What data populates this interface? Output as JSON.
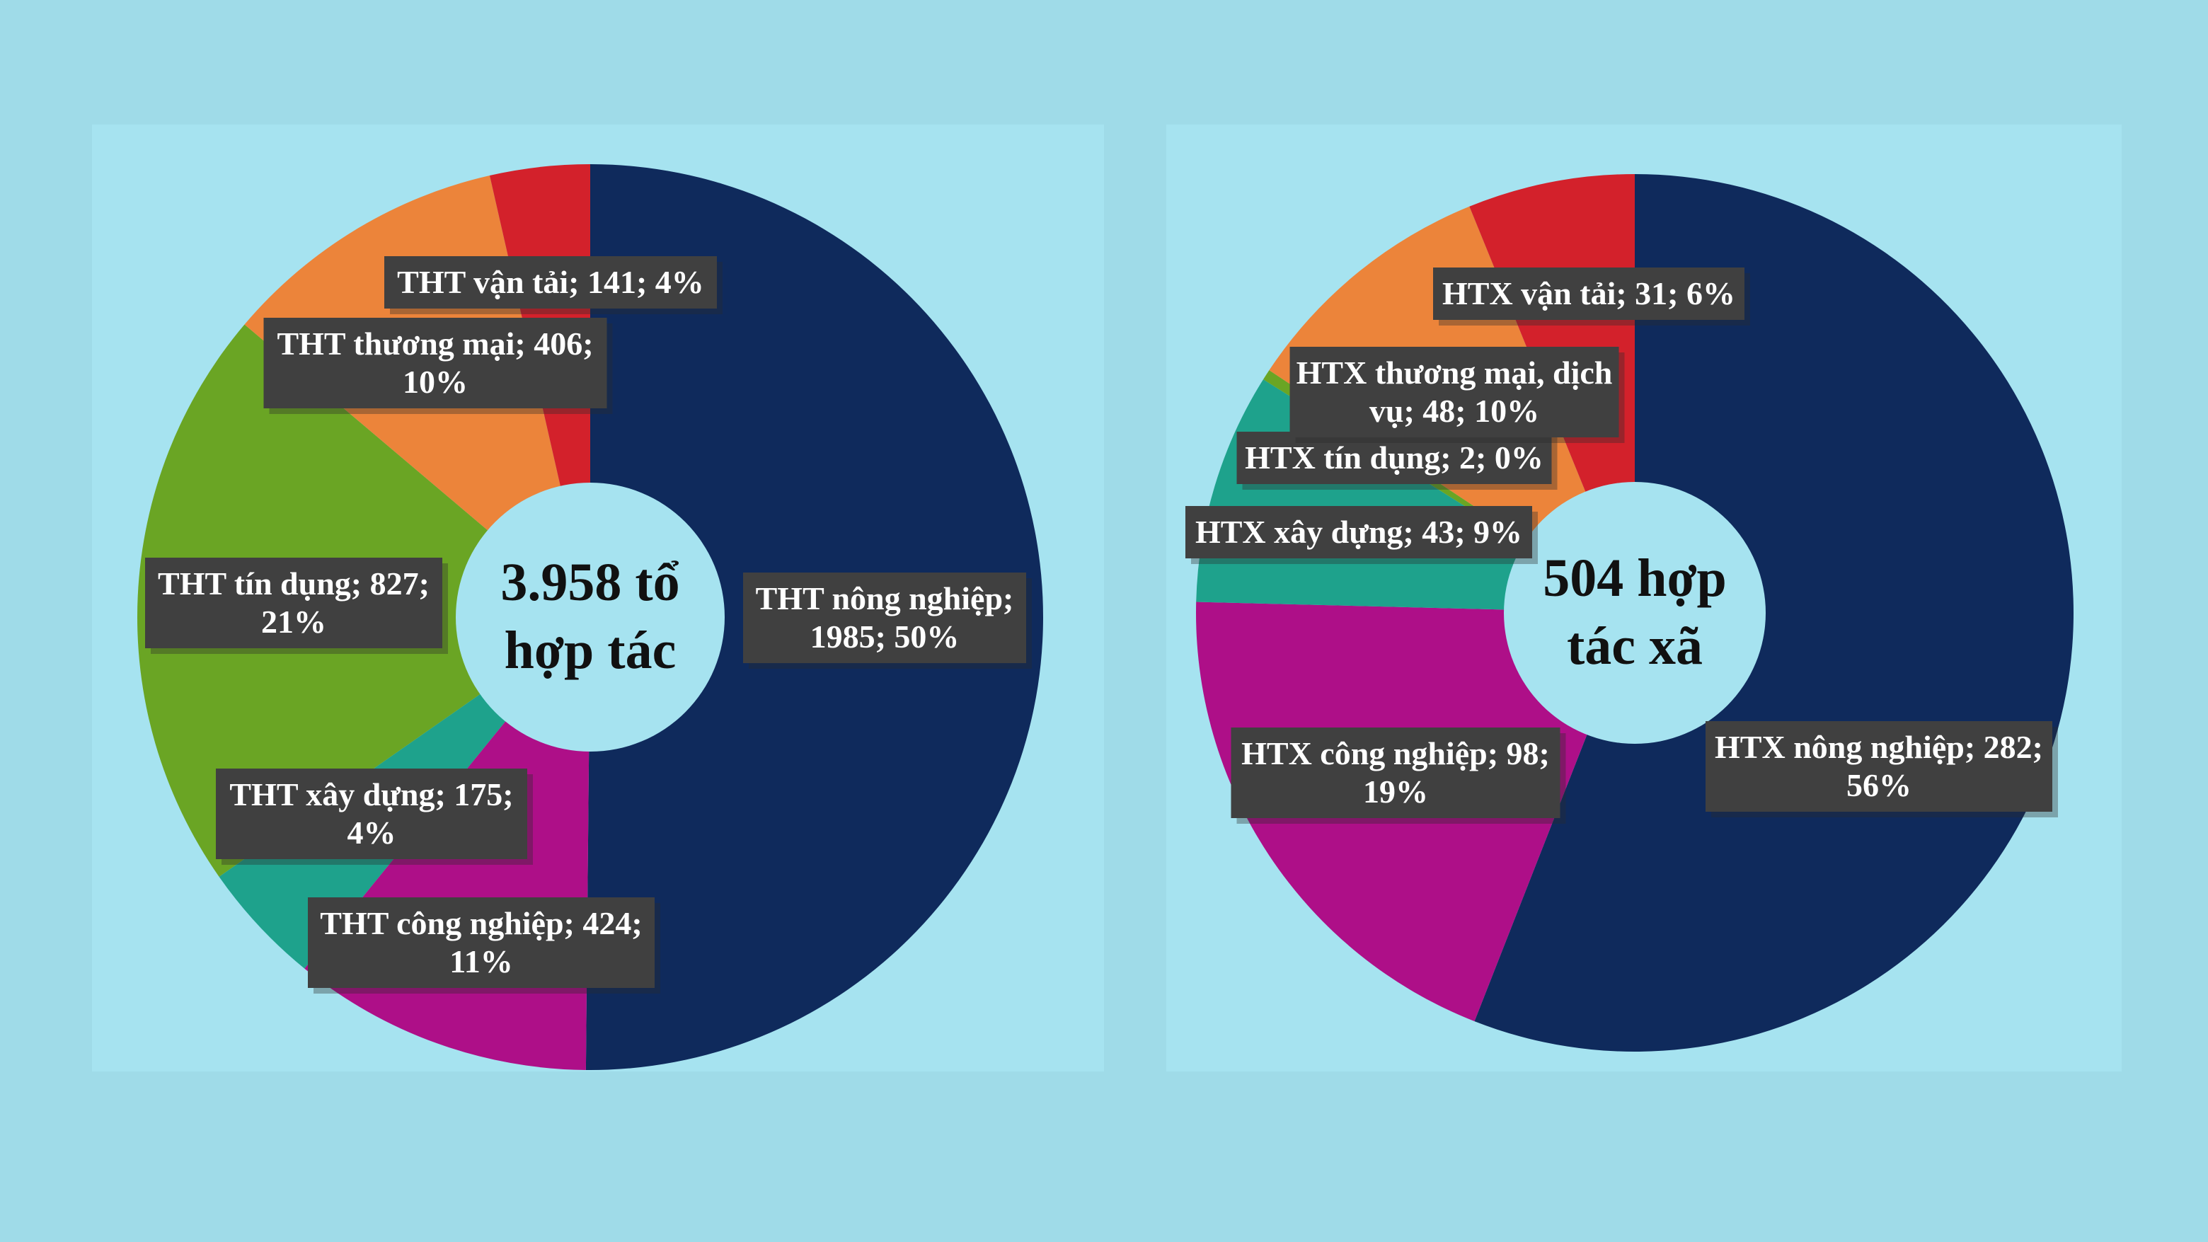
{
  "colors": {
    "background": "#9fdbe8",
    "panel": "#a6e3f0",
    "label_box": "#404040",
    "label_text": "#ffffff",
    "center_fill": "#a6e3f0"
  },
  "chart_data": [
    {
      "type": "pie",
      "variant": "donut",
      "center_text": [
        "3.958 tổ",
        "hợp tác"
      ],
      "categories": [
        "THT nông nghiệp",
        "THT công nghiệp",
        "THT xây dựng",
        "THT tín dụng",
        "THT thương mại",
        "THT vận tải"
      ],
      "values": [
        1985,
        424,
        175,
        827,
        406,
        141
      ],
      "percents": [
        "50%",
        "11%",
        "4%",
        "21%",
        "10%",
        "4%"
      ],
      "labels": [
        [
          "THT nông nghiệp;",
          "1985; 50%"
        ],
        [
          "THT công nghiệp; 424;",
          "11%"
        ],
        [
          "THT xây dựng; 175;",
          "4%"
        ],
        [
          "THT tín dụng; 827;",
          "21%"
        ],
        [
          "THT thương mại; 406;",
          "10%"
        ],
        [
          "THT vận tải; 141; 4%"
        ]
      ],
      "colors": [
        "#0f2a5c",
        "#ae0f88",
        "#1ea28c",
        "#6aa524",
        "#ec843a",
        "#d3212b"
      ]
    },
    {
      "type": "pie",
      "variant": "donut",
      "center_text": [
        "504 hợp",
        "tác xã"
      ],
      "categories": [
        "HTX nông nghiệp",
        "HTX công nghiệp",
        "HTX xây dựng",
        "HTX tín dụng",
        "HTX thương mại, dịch vụ",
        "HTX vận tải"
      ],
      "values": [
        282,
        98,
        43,
        2,
        48,
        31
      ],
      "percents": [
        "56%",
        "19%",
        "9%",
        "0%",
        "10%",
        "6%"
      ],
      "labels": [
        [
          "HTX nông nghiệp; 282;",
          "56%"
        ],
        [
          "HTX công nghiệp; 98;",
          "19%"
        ],
        [
          "HTX xây dựng; 43; 9%"
        ],
        [
          "HTX tín dụng; 2; 0%"
        ],
        [
          "HTX thương mại, dịch",
          "vụ; 48; 10%"
        ],
        [
          "HTX vận tải; 31; 6%"
        ]
      ],
      "colors": [
        "#0f2a5c",
        "#ae0f88",
        "#1ea28c",
        "#6aa524",
        "#ec843a",
        "#d3212b"
      ]
    }
  ]
}
